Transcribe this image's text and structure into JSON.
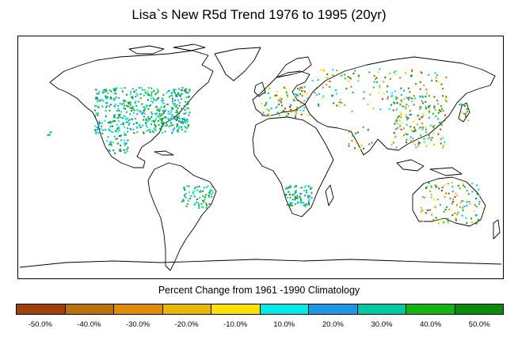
{
  "title": "Lisa`s New R5d Trend 1976 to 1995 (20yr)",
  "subtitle": "Percent Change from 1961 -1990 Climatology",
  "legend": {
    "labels": [
      "-50.0%",
      "-40.0%",
      "-30.0%",
      "-20.0%",
      "-10.0%",
      "10.0%",
      "20.0%",
      "30.0%",
      "40.0%",
      "50.0%"
    ],
    "colors": [
      "#a0400a",
      "#b87208",
      "#e08c08",
      "#e6b800",
      "#ffe000",
      "#00e8e8",
      "#1e96e6",
      "#00c8a0",
      "#14b414",
      "#0a8c0a"
    ]
  },
  "map_data": {
    "type": "station-dot-map",
    "regions_with_stations": [
      "United States",
      "Southern Canada",
      "Mexico",
      "Europe",
      "Russia",
      "Central Asia",
      "China",
      "Japan",
      "India",
      "Southeast Brazil",
      "South Africa",
      "Australia",
      "Hawaii"
    ]
  }
}
